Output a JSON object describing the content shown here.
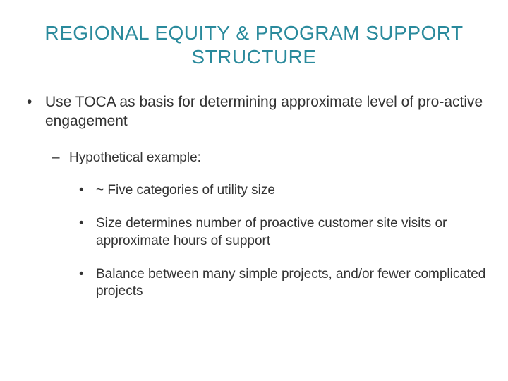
{
  "title": "REGIONAL EQUITY & PROGRAM SUPPORT STRUCTURE",
  "bullets": {
    "item1": "Use TOCA as basis for determining approximate level of pro-active engagement",
    "sub1": "Hypothetical example:",
    "subsub1": "~ Five categories of utility size",
    "subsub2": "Size determines number of proactive customer site visits or approximate hours of support",
    "subsub3": "Balance between many simple projects, and/or fewer complicated projects"
  },
  "colors": {
    "title_color": "#2a8a9c",
    "text_color": "#333333",
    "background": "#ffffff"
  },
  "typography": {
    "title_fontsize": 28,
    "body_fontsize": 21,
    "sub_fontsize": 19
  }
}
